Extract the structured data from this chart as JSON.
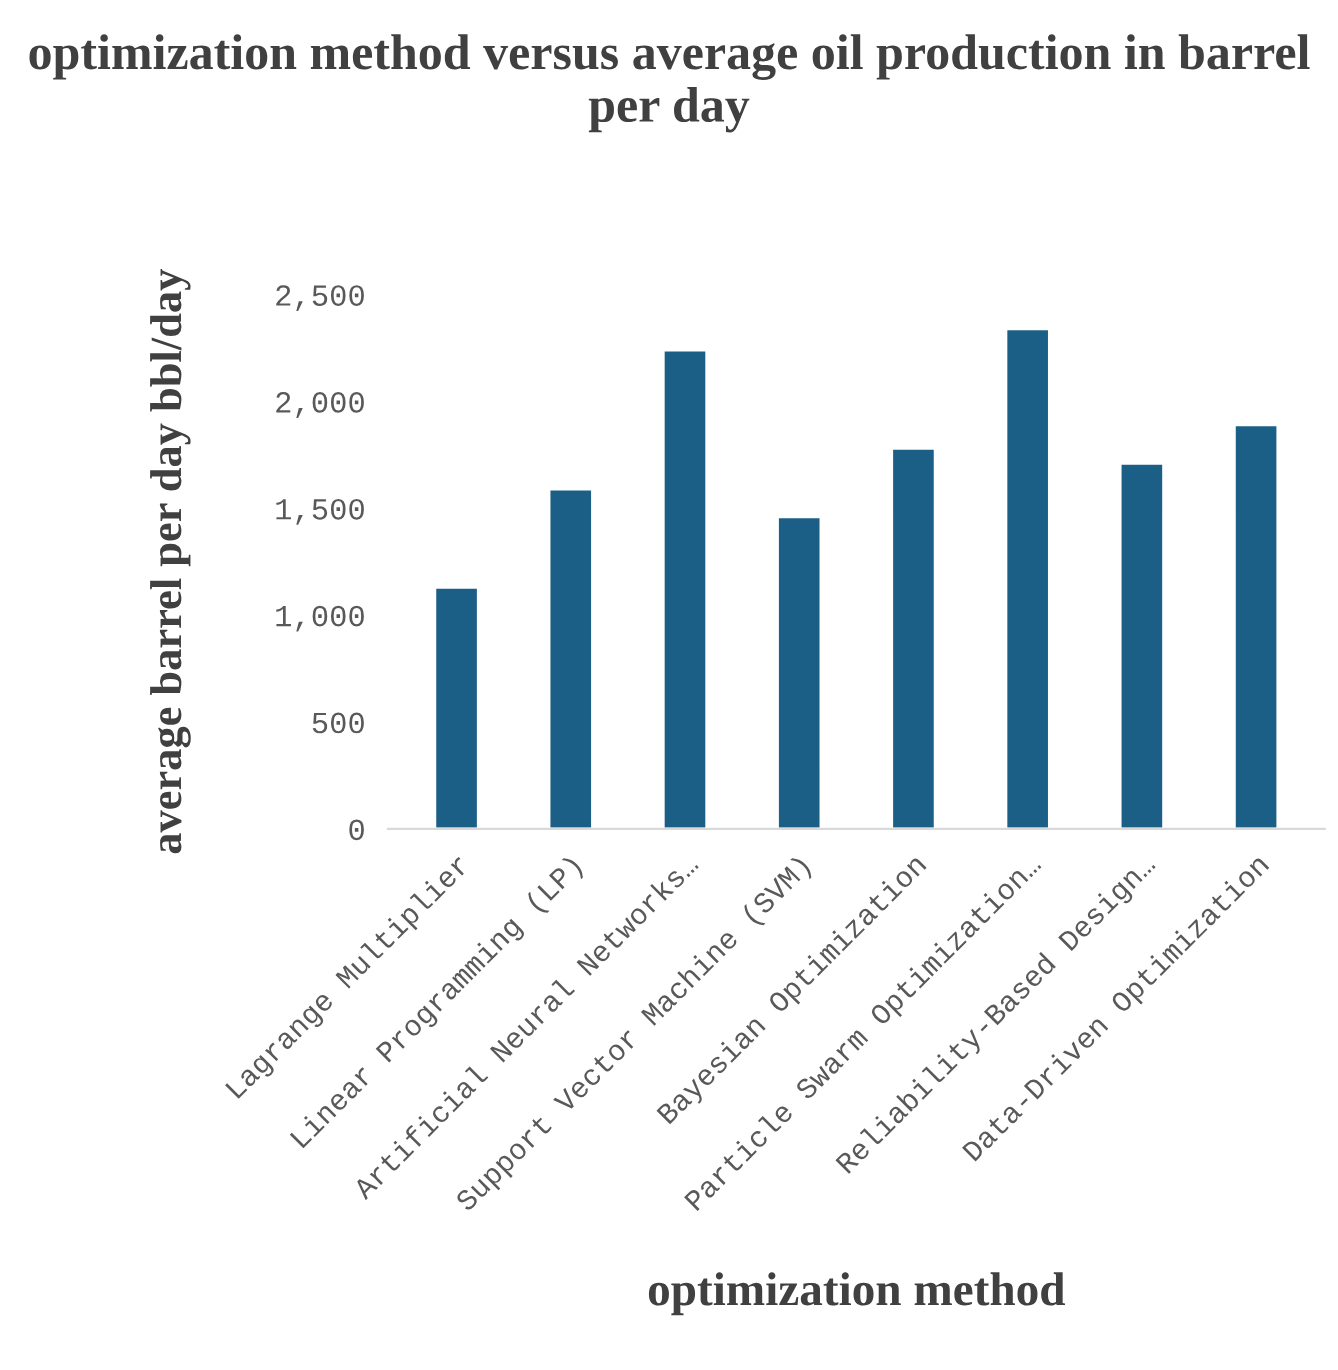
{
  "chart_data": {
    "type": "bar",
    "title": "optimization method versus average oil production in barrel per day",
    "xlabel": "optimization method",
    "ylabel": "average barrel per day bbl/day",
    "categories": [
      "Lagrange Multiplier",
      "Linear Programming (LP)",
      "Artificial Neural Networks…",
      "Support Vector Machine (SVM)",
      "Bayesian Optimization",
      "Particle Swarm Optimization…",
      "Reliability-Based Design…",
      "Data-Driven Optimization"
    ],
    "values": [
      1130,
      1590,
      2240,
      1460,
      1780,
      2340,
      1710,
      1890
    ],
    "color": "#1b5f86",
    "ylim": [
      0,
      2500
    ],
    "yticks": [
      {
        "value": 0,
        "label": "0"
      },
      {
        "value": 500,
        "label": "500"
      },
      {
        "value": 1000,
        "label": "1,000"
      },
      {
        "value": 1500,
        "label": "1,500"
      },
      {
        "value": 2000,
        "label": "2,000"
      },
      {
        "value": 2500,
        "label": "2,500"
      }
    ],
    "grid": false,
    "legend": false
  }
}
